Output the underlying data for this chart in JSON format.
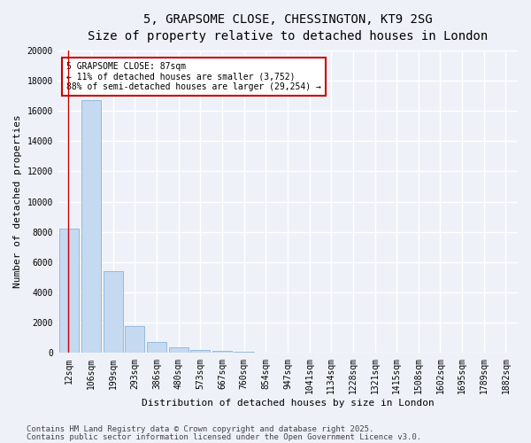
{
  "title_line1": "5, GRAPSOME CLOSE, CHESSINGTON, KT9 2SG",
  "title_line2": "Size of property relative to detached houses in London",
  "xlabel": "Distribution of detached houses by size in London",
  "ylabel": "Number of detached properties",
  "categories": [
    "12sqm",
    "106sqm",
    "199sqm",
    "293sqm",
    "386sqm",
    "480sqm",
    "573sqm",
    "667sqm",
    "760sqm",
    "854sqm",
    "947sqm",
    "1041sqm",
    "1134sqm",
    "1228sqm",
    "1321sqm",
    "1415sqm",
    "1508sqm",
    "1602sqm",
    "1695sqm",
    "1789sqm",
    "1882sqm"
  ],
  "values": [
    8200,
    16700,
    5400,
    1800,
    750,
    350,
    200,
    150,
    100,
    0,
    0,
    0,
    0,
    0,
    0,
    0,
    0,
    0,
    0,
    0,
    0
  ],
  "bar_color": "#c5d9f0",
  "bar_edge_color": "#8ab4d8",
  "annotation_text": "5 GRAPSOME CLOSE: 87sqm\n← 11% of detached houses are smaller (3,752)\n88% of semi-detached houses are larger (29,254) →",
  "annotation_box_color": "#ffffff",
  "annotation_box_edge": "#cc0000",
  "red_line_color": "#cc0000",
  "ylim": [
    0,
    20000
  ],
  "yticks": [
    0,
    2000,
    4000,
    6000,
    8000,
    10000,
    12000,
    14000,
    16000,
    18000,
    20000
  ],
  "footer_line1": "Contains HM Land Registry data © Crown copyright and database right 2025.",
  "footer_line2": "Contains public sector information licensed under the Open Government Licence v3.0.",
  "bg_color": "#eef2f8",
  "grid_color": "#ffffff",
  "title_fontsize": 10,
  "subtitle_fontsize": 9,
  "axis_label_fontsize": 8,
  "tick_fontsize": 7,
  "footer_fontsize": 6.5
}
